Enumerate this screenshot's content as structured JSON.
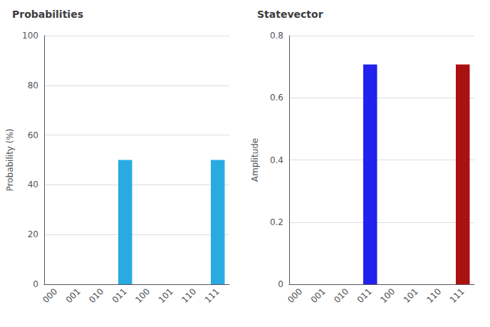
{
  "chart_data": [
    {
      "type": "bar",
      "title": "Probabilities",
      "categories": [
        "000",
        "001",
        "010",
        "011",
        "100",
        "101",
        "110",
        "111"
      ],
      "values": [
        0,
        0,
        0,
        50,
        0,
        0,
        0,
        50
      ],
      "color": "#29abe2",
      "ylabel": "Probability (%)",
      "ylim": [
        0,
        100
      ],
      "yticks": [
        0,
        20,
        40,
        60,
        80,
        100
      ],
      "grid": true
    },
    {
      "type": "bar",
      "title": "Statevector",
      "categories": [
        "000",
        "001",
        "010",
        "011",
        "100",
        "101",
        "110",
        "111"
      ],
      "values": [
        0,
        0,
        0,
        0.707,
        0,
        0,
        0,
        0.707
      ],
      "colors": [
        "#2222ee",
        "#2222ee",
        "#2222ee",
        "#2222ee",
        "#aa1111",
        "#aa1111",
        "#aa1111",
        "#aa1111"
      ],
      "ylabel": "Amplitude",
      "ylim": [
        0,
        0.8
      ],
      "yticks": [
        0,
        0.2,
        0.4,
        0.6,
        0.8
      ],
      "grid": true
    }
  ]
}
